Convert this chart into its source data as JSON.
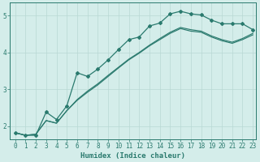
{
  "title": "",
  "xlabel": "Humidex (Indice chaleur)",
  "ylabel": "",
  "bg_color": "#d4edea",
  "line_color": "#2a7a6e",
  "grid_color": "#b8d8d4",
  "xlim": [
    -0.5,
    23.3
  ],
  "ylim": [
    1.65,
    5.35
  ],
  "xticks": [
    0,
    1,
    2,
    3,
    4,
    5,
    6,
    7,
    8,
    9,
    10,
    11,
    12,
    13,
    14,
    15,
    16,
    17,
    18,
    19,
    20,
    21,
    22,
    23
  ],
  "yticks": [
    2,
    3,
    4,
    5
  ],
  "curve1_x": [
    0,
    1,
    2,
    3,
    4,
    5,
    6,
    7,
    8,
    9,
    10,
    11,
    12,
    13,
    14,
    15,
    16,
    17,
    18,
    19,
    20,
    21,
    22,
    23
  ],
  "curve1_y": [
    1.82,
    1.75,
    1.75,
    2.38,
    2.18,
    2.55,
    3.45,
    3.35,
    3.55,
    3.8,
    4.08,
    4.35,
    4.42,
    4.72,
    4.8,
    5.05,
    5.12,
    5.05,
    5.02,
    4.88,
    4.78,
    4.78,
    4.78,
    4.62
  ],
  "curve2_x": [
    0,
    1,
    2,
    3,
    4,
    5,
    6,
    7,
    8,
    9,
    10,
    11,
    12,
    13,
    14,
    15,
    16,
    17,
    18,
    19,
    20,
    21,
    22,
    23
  ],
  "curve2_y": [
    1.82,
    1.75,
    1.78,
    2.15,
    2.08,
    2.42,
    2.72,
    2.95,
    3.15,
    3.38,
    3.6,
    3.82,
    4.0,
    4.2,
    4.38,
    4.55,
    4.68,
    4.62,
    4.58,
    4.45,
    4.35,
    4.28,
    4.38,
    4.52
  ],
  "curve3_x": [
    0,
    1,
    2,
    3,
    4,
    5,
    6,
    7,
    8,
    9,
    10,
    11,
    12,
    13,
    14,
    15,
    16,
    17,
    18,
    19,
    20,
    21,
    22,
    23
  ],
  "curve3_y": [
    1.82,
    1.75,
    1.78,
    2.15,
    2.08,
    2.42,
    2.7,
    2.92,
    3.12,
    3.35,
    3.58,
    3.8,
    3.98,
    4.18,
    4.35,
    4.52,
    4.65,
    4.58,
    4.55,
    4.42,
    4.32,
    4.25,
    4.35,
    4.48
  ]
}
